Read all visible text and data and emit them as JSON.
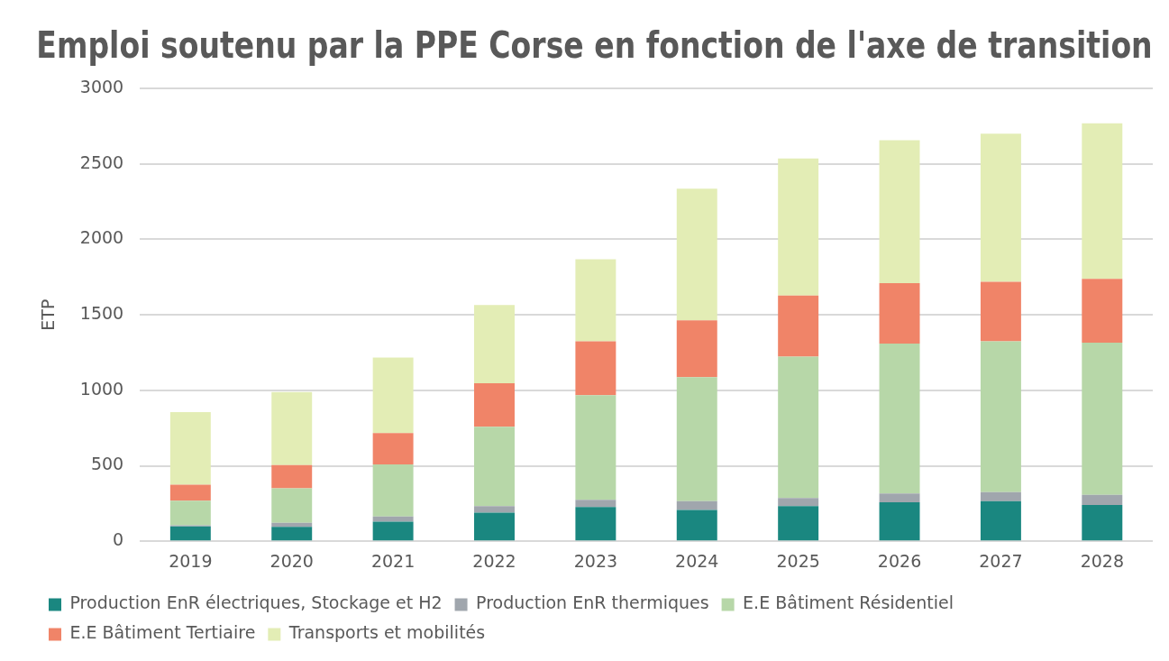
{
  "chart_data": {
    "type": "bar",
    "title": "Emploi soutenu par la PPE Corse en fonction de l'axe de transition",
    "ylabel": "ETP",
    "categories": [
      "2019",
      "2020",
      "2021",
      "2022",
      "2023",
      "2024",
      "2025",
      "2026",
      "2027",
      "2028"
    ],
    "series": [
      {
        "name": "Production EnR électriques, Stockage et H2",
        "color": "#1a8780",
        "values": [
          99,
          96,
          130,
          190,
          226,
          207,
          232,
          258,
          266,
          240
        ]
      },
      {
        "name": "Production EnR thermiques",
        "color": "#a0a6ad",
        "values": [
          6,
          26,
          34,
          42,
          49,
          59,
          54,
          59,
          59,
          68
        ]
      },
      {
        "name": "E.E Bâtiment Résidentiel",
        "color": "#b7d7a8",
        "values": [
          164,
          229,
          345,
          526,
          693,
          821,
          937,
          993,
          999,
          1008
        ]
      },
      {
        "name": "E.E Bâtiment Tertiaire",
        "color": "#f08468",
        "values": [
          105,
          153,
          207,
          289,
          356,
          376,
          404,
          399,
          394,
          422
        ]
      },
      {
        "name": "Transports et mobilités",
        "color": "#e3edb5",
        "values": [
          481,
          484,
          501,
          518,
          544,
          872,
          909,
          948,
          982,
          1030
        ]
      }
    ],
    "stacked": true,
    "ylim": [
      0,
      3000
    ],
    "yticks": [
      0,
      500,
      1000,
      1500,
      2000,
      2500,
      3000
    ],
    "grid": "y",
    "legend": "bottom"
  }
}
